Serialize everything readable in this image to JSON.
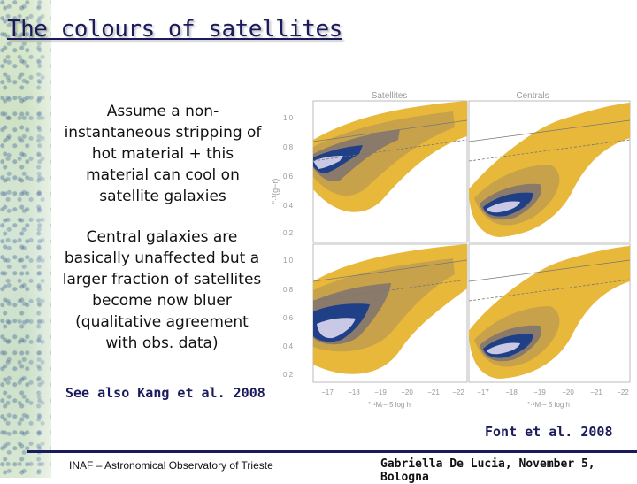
{
  "slide": {
    "title": "The colours of satellites",
    "paragraph_1": "Assume a non-instantaneous stripping of hot material + this material can cool on satellite galaxies",
    "paragraph_2": "Central galaxies are basically unaffected but a larger fraction of satellites become now bluer (qualitative agreement with obs. data)",
    "see_also": "See also Kang et al. 2008",
    "figure_credit": "Font et al. 2008",
    "footer_left": "INAF – Astronomical Observatory of Trieste",
    "footer_right": "Gabriella De Lucia, November 5, Bologna"
  },
  "figure": {
    "column_titles": [
      "Satellites",
      "Centrals"
    ],
    "y_axis_label": "°·¹(g−r)",
    "y_tick_labels": [
      "1.0",
      "0.8",
      "0.6",
      "0.4",
      "0.2"
    ],
    "x_axis_label": "°·¹Mᵣ− 5 log h",
    "x_tick_labels": [
      "−17",
      "−18",
      "−19",
      "−20",
      "−21",
      "−22"
    ],
    "colors": {
      "contour_outer": "#e8b83a",
      "contour_mid": "#b89a58",
      "contour_inner": "#1f3f86",
      "contour_core": "#c9c9e6",
      "frame": "#bbbbbb",
      "guide_line": "#777777"
    }
  }
}
